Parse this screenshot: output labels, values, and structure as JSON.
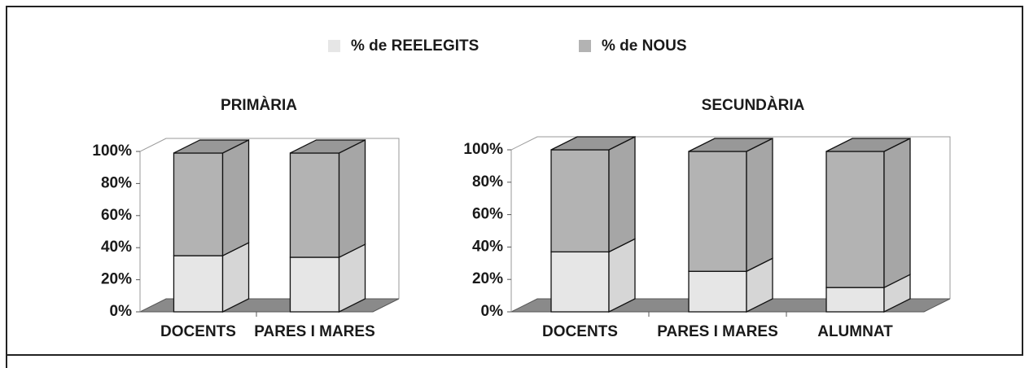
{
  "chart_data": {
    "type": "bar",
    "stacked": true,
    "series": [
      {
        "name": "% de REELEGITS",
        "color": "#e6e6e6"
      },
      {
        "name": "% de NOUS",
        "color": "#b3b3b3"
      }
    ],
    "ylim": [
      0,
      100
    ],
    "yticks": [
      {
        "value": 0,
        "label": "0%"
      },
      {
        "value": 20,
        "label": "20%"
      },
      {
        "value": 40,
        "label": "40%"
      },
      {
        "value": 60,
        "label": "60%"
      },
      {
        "value": 80,
        "label": "80%"
      },
      {
        "value": 100,
        "label": "100%"
      }
    ],
    "panels": [
      {
        "title": "PRIMÀRIA",
        "categories": [
          "DOCENTS",
          "PARES I MARES"
        ],
        "values": [
          [
            35,
            34
          ],
          [
            64,
            65
          ]
        ]
      },
      {
        "title": "SECUNDÀRIA",
        "categories": [
          "DOCENTS",
          "PARES I MARES",
          "ALUMNAT"
        ],
        "values": [
          [
            37,
            25,
            15
          ],
          [
            63,
            74,
            84
          ]
        ]
      }
    ]
  }
}
